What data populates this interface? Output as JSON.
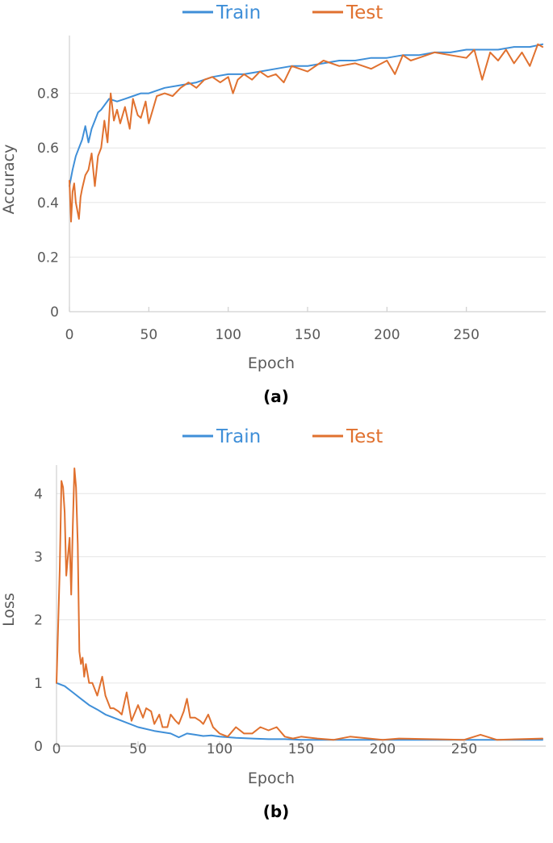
{
  "colors": {
    "train": "#3f8fd8",
    "test": "#e0712f"
  },
  "chart_data": [
    {
      "type": "line",
      "panel_label": "(a)",
      "xlabel": "Epoch",
      "ylabel": "Accuracy",
      "xlim": [
        0,
        300
      ],
      "ylim": [
        0,
        1
      ],
      "xticks": [
        0,
        50,
        100,
        150,
        200,
        250
      ],
      "yticks": [
        0,
        0.2,
        0.4,
        0.6,
        0.8
      ],
      "ytick_labels": [
        "0",
        "0.2",
        "0.4",
        "0.6",
        "0.8"
      ],
      "grid": "horizontal",
      "legend": {
        "position": "top-center",
        "entries": [
          "Train",
          "Test"
        ]
      },
      "series": [
        {
          "name": "Train",
          "x": [
            0,
            2,
            4,
            6,
            8,
            10,
            12,
            14,
            16,
            18,
            20,
            25,
            30,
            35,
            40,
            45,
            50,
            60,
            70,
            80,
            90,
            100,
            110,
            120,
            130,
            140,
            150,
            160,
            170,
            180,
            190,
            200,
            210,
            220,
            230,
            240,
            250,
            260,
            270,
            280,
            290,
            298
          ],
          "y": [
            0.46,
            0.52,
            0.57,
            0.6,
            0.63,
            0.68,
            0.62,
            0.67,
            0.7,
            0.73,
            0.74,
            0.78,
            0.77,
            0.78,
            0.79,
            0.8,
            0.8,
            0.82,
            0.83,
            0.84,
            0.86,
            0.87,
            0.87,
            0.88,
            0.89,
            0.9,
            0.9,
            0.91,
            0.92,
            0.92,
            0.93,
            0.93,
            0.94,
            0.94,
            0.95,
            0.95,
            0.96,
            0.96,
            0.96,
            0.97,
            0.97,
            0.98
          ]
        },
        {
          "name": "Test",
          "x": [
            0,
            1,
            2,
            3,
            4,
            6,
            7,
            8,
            10,
            12,
            14,
            16,
            18,
            20,
            22,
            24,
            26,
            28,
            30,
            32,
            35,
            38,
            40,
            43,
            45,
            48,
            50,
            55,
            60,
            65,
            70,
            75,
            80,
            85,
            90,
            95,
            100,
            103,
            106,
            110,
            115,
            120,
            125,
            130,
            135,
            140,
            150,
            160,
            170,
            180,
            190,
            200,
            205,
            210,
            215,
            220,
            230,
            240,
            250,
            255,
            260,
            265,
            270,
            275,
            280,
            285,
            290,
            295,
            298
          ],
          "y": [
            0.48,
            0.33,
            0.44,
            0.47,
            0.4,
            0.34,
            0.42,
            0.45,
            0.5,
            0.52,
            0.58,
            0.46,
            0.57,
            0.6,
            0.7,
            0.62,
            0.8,
            0.7,
            0.74,
            0.69,
            0.75,
            0.67,
            0.78,
            0.72,
            0.71,
            0.77,
            0.69,
            0.79,
            0.8,
            0.79,
            0.82,
            0.84,
            0.82,
            0.85,
            0.86,
            0.84,
            0.86,
            0.8,
            0.85,
            0.87,
            0.85,
            0.88,
            0.86,
            0.87,
            0.84,
            0.9,
            0.88,
            0.92,
            0.9,
            0.91,
            0.89,
            0.92,
            0.87,
            0.94,
            0.92,
            0.93,
            0.95,
            0.94,
            0.93,
            0.96,
            0.85,
            0.95,
            0.92,
            0.96,
            0.91,
            0.95,
            0.9,
            0.98,
            0.97
          ]
        }
      ]
    },
    {
      "type": "line",
      "panel_label": "(b)",
      "xlabel": "Epoch",
      "ylabel": "Loss",
      "xlim": [
        0,
        300
      ],
      "ylim": [
        0,
        4.4
      ],
      "xticks": [
        0,
        50,
        100,
        150,
        200,
        250
      ],
      "yticks": [
        0,
        1,
        2,
        3,
        4
      ],
      "ytick_labels": [
        "0",
        "1",
        "2",
        "3",
        "4"
      ],
      "grid": "horizontal",
      "legend": {
        "position": "top-center",
        "entries": [
          "Train",
          "Test"
        ]
      },
      "series": [
        {
          "name": "Train",
          "x": [
            0,
            5,
            10,
            15,
            20,
            25,
            30,
            40,
            50,
            60,
            70,
            75,
            80,
            85,
            90,
            95,
            100,
            110,
            120,
            130,
            140,
            150,
            200,
            250,
            298
          ],
          "y": [
            1.0,
            0.95,
            0.85,
            0.75,
            0.65,
            0.58,
            0.5,
            0.4,
            0.3,
            0.24,
            0.2,
            0.14,
            0.2,
            0.18,
            0.16,
            0.17,
            0.15,
            0.13,
            0.12,
            0.11,
            0.11,
            0.1,
            0.1,
            0.1,
            0.1
          ]
        },
        {
          "name": "Test",
          "x": [
            0,
            2,
            3,
            4,
            5,
            6,
            7,
            8,
            9,
            10,
            11,
            12,
            13,
            14,
            15,
            16,
            17,
            18,
            20,
            22,
            25,
            28,
            30,
            33,
            35,
            38,
            40,
            43,
            46,
            50,
            53,
            55,
            58,
            60,
            63,
            65,
            68,
            70,
            73,
            75,
            78,
            80,
            82,
            85,
            88,
            90,
            93,
            96,
            100,
            105,
            110,
            115,
            120,
            125,
            130,
            135,
            140,
            145,
            150,
            160,
            170,
            180,
            200,
            210,
            250,
            260,
            270,
            298
          ],
          "y": [
            1.0,
            2.8,
            4.2,
            4.1,
            3.7,
            2.7,
            3.0,
            3.3,
            2.4,
            3.5,
            4.4,
            4.1,
            3.2,
            1.5,
            1.3,
            1.4,
            1.1,
            1.3,
            1.0,
            1.0,
            0.8,
            1.1,
            0.8,
            0.6,
            0.6,
            0.55,
            0.5,
            0.85,
            0.4,
            0.65,
            0.45,
            0.6,
            0.55,
            0.35,
            0.5,
            0.3,
            0.3,
            0.5,
            0.4,
            0.35,
            0.55,
            0.75,
            0.45,
            0.45,
            0.4,
            0.35,
            0.5,
            0.3,
            0.2,
            0.15,
            0.3,
            0.2,
            0.2,
            0.3,
            0.25,
            0.3,
            0.15,
            0.12,
            0.15,
            0.12,
            0.1,
            0.15,
            0.1,
            0.12,
            0.1,
            0.18,
            0.1,
            0.12
          ]
        }
      ]
    }
  ]
}
